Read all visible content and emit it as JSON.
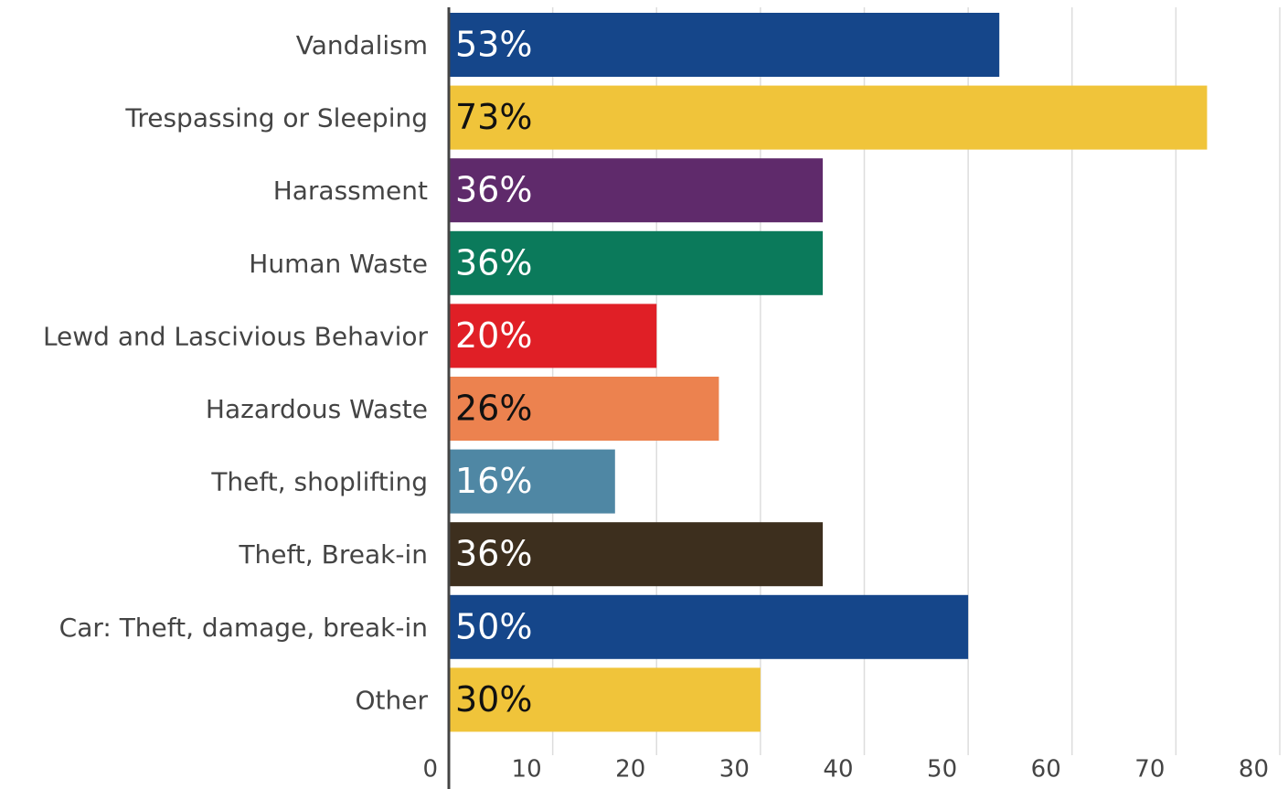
{
  "chart_data": {
    "type": "barh",
    "categories": [
      "Vandalism",
      "Trespassing or Sleeping",
      "Harassment",
      "Human Waste",
      "Lewd and Lascivious Behavior",
      "Hazardous Waste",
      "Theft, shoplifting",
      "Theft, Break-in",
      "Car: Theft, damage, break-in",
      "Other"
    ],
    "values": [
      53,
      73,
      36,
      36,
      20,
      26,
      16,
      36,
      50,
      30
    ],
    "value_labels": [
      "53%",
      "73%",
      "36%",
      "36%",
      "20%",
      "26%",
      "16%",
      "36%",
      "50%",
      "30%"
    ],
    "colors": [
      "#15468a",
      "#f0c43a",
      "#5f2a6b",
      "#0b7a5b",
      "#e01f26",
      "#ec824f",
      "#4f87a4",
      "#3d2f1e",
      "#15468a",
      "#f0c43a"
    ],
    "xlim": [
      0,
      80
    ],
    "xticks": [
      0,
      10,
      20,
      30,
      40,
      50,
      60,
      70,
      80
    ],
    "grid": true
  }
}
